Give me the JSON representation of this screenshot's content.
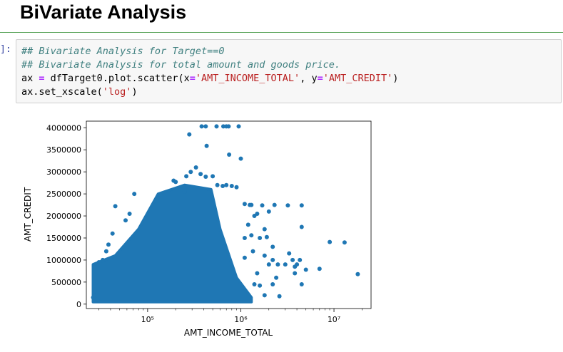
{
  "heading": "BiVariate Analysis",
  "prompt": "]:",
  "code": {
    "line1": "## Bivariate Analysis for Target==0",
    "line2": "## Bivariate Analysis for total amount and goods price.",
    "line3_a": "ax ",
    "line3_eq": "=",
    "line3_b": " dfTarget0.plot.scatter(x",
    "line3_eq2": "=",
    "line3_s1": "'AMT_INCOME_TOTAL'",
    "line3_c": ", y",
    "line3_eq3": "=",
    "line3_s2": "'AMT_CREDIT'",
    "line3_d": ")",
    "line4_a": "ax.set_xscale(",
    "line4_s": "'log'",
    "line4_b": ")"
  },
  "colors": {
    "point": "#1f77b4",
    "divider": "#5aa45a",
    "cell_bg": "#f7f7f7"
  },
  "chart_data": {
    "type": "scatter",
    "xlabel": "AMT_INCOME_TOTAL",
    "ylabel": "AMT_CREDIT",
    "xscale": "log",
    "xlim": [
      22000,
      25000000
    ],
    "ylim": [
      -100000,
      4150000
    ],
    "xticks": [
      {
        "value": 100000,
        "label": "10⁵"
      },
      {
        "value": 1000000,
        "label": "10⁶"
      },
      {
        "value": 10000000,
        "label": "10⁷"
      }
    ],
    "yticks": [
      0,
      500000,
      1000000,
      1500000,
      2000000,
      2500000,
      3000000,
      3500000,
      4000000
    ],
    "ytick_labels": [
      "0",
      "500000",
      "1000000",
      "1500000",
      "2000000",
      "2500000",
      "3000000",
      "3500000",
      "4000000"
    ],
    "dense_region": [
      [
        26000,
        50000
      ],
      [
        26000,
        900000
      ],
      [
        45000,
        1100000
      ],
      [
        80000,
        1700000
      ],
      [
        130000,
        2500000
      ],
      [
        250000,
        2700000
      ],
      [
        480000,
        2600000
      ],
      [
        600000,
        1700000
      ],
      [
        900000,
        600000
      ],
      [
        1300000,
        150000
      ],
      [
        1300000,
        50000
      ],
      [
        26000,
        50000
      ]
    ],
    "points": [
      [
        380000,
        4030000
      ],
      [
        420000,
        4030000
      ],
      [
        550000,
        4030000
      ],
      [
        650000,
        4030000
      ],
      [
        700000,
        4030000
      ],
      [
        740000,
        4030000
      ],
      [
        950000,
        4030000
      ],
      [
        280000,
        3850000
      ],
      [
        430000,
        3590000
      ],
      [
        750000,
        3390000
      ],
      [
        1000000,
        3300000
      ],
      [
        290000,
        3000000
      ],
      [
        330000,
        3100000
      ],
      [
        190000,
        2800000
      ],
      [
        200000,
        2770000
      ],
      [
        260000,
        2900000
      ],
      [
        370000,
        2950000
      ],
      [
        420000,
        2890000
      ],
      [
        500000,
        2900000
      ],
      [
        250000,
        2550000
      ],
      [
        72000,
        2500000
      ],
      [
        560000,
        2700000
      ],
      [
        640000,
        2680000
      ],
      [
        700000,
        2700000
      ],
      [
        800000,
        2680000
      ],
      [
        900000,
        2650000
      ],
      [
        1100000,
        2270000
      ],
      [
        1250000,
        2250000
      ],
      [
        1300000,
        2250000
      ],
      [
        1700000,
        2240000
      ],
      [
        2300000,
        2250000
      ],
      [
        3200000,
        2240000
      ],
      [
        4500000,
        2240000
      ],
      [
        2000000,
        2100000
      ],
      [
        1500000,
        2050000
      ],
      [
        1400000,
        2000000
      ],
      [
        1200000,
        1800000
      ],
      [
        4500000,
        1750000
      ],
      [
        1800000,
        1700000
      ],
      [
        1300000,
        1560000
      ],
      [
        1100000,
        1500000
      ],
      [
        1600000,
        1500000
      ],
      [
        1900000,
        1520000
      ],
      [
        13000000,
        1400000
      ],
      [
        9000000,
        1410000
      ],
      [
        2200000,
        1300000
      ],
      [
        1350000,
        1200000
      ],
      [
        1800000,
        1100000
      ],
      [
        3300000,
        1150000
      ],
      [
        2200000,
        1000000
      ],
      [
        2000000,
        900000
      ],
      [
        2500000,
        900000
      ],
      [
        3600000,
        1000000
      ],
      [
        3000000,
        900000
      ],
      [
        4000000,
        900000
      ],
      [
        3800000,
        850000
      ],
      [
        7000000,
        800000
      ],
      [
        5000000,
        780000
      ],
      [
        18000000,
        680000
      ],
      [
        1500000,
        700000
      ],
      [
        2400000,
        600000
      ],
      [
        2200000,
        450000
      ],
      [
        1600000,
        420000
      ],
      [
        3800000,
        700000
      ],
      [
        2600000,
        180000
      ],
      [
        1800000,
        200000
      ],
      [
        4500000,
        450000
      ],
      [
        4300000,
        1000000
      ],
      [
        1400000,
        450000
      ],
      [
        1100000,
        1050000
      ],
      [
        45000,
        2220000
      ],
      [
        58000,
        1900000
      ],
      [
        64000,
        2050000
      ],
      [
        42000,
        1600000
      ],
      [
        38000,
        1350000
      ],
      [
        36000,
        1200000
      ],
      [
        33000,
        1000000
      ],
      [
        30000,
        950000
      ],
      [
        27000,
        300000
      ],
      [
        26000,
        150000
      ],
      [
        29000,
        100000
      ],
      [
        26500,
        200000
      ]
    ]
  }
}
